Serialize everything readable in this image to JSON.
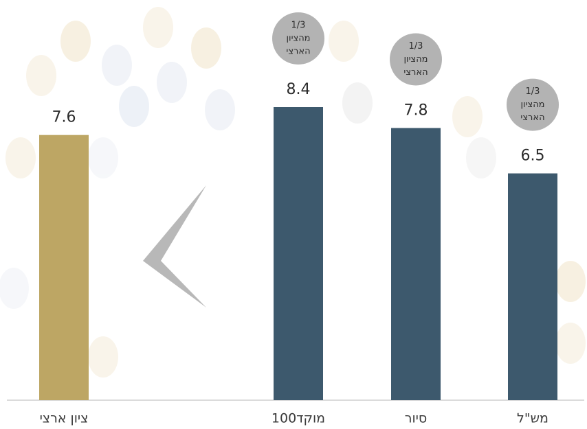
{
  "chart_data": {
    "type": "bar",
    "categories": [
      "ציון ארצי",
      "מוקד100",
      "סיור",
      "מש\"ל"
    ],
    "values": [
      7.6,
      8.4,
      7.8,
      6.5
    ],
    "colors": [
      "#bda664",
      "#3d596d",
      "#3d596d",
      "#3d596d"
    ],
    "annotations": [
      null,
      [
        "1/3",
        "מהציון",
        "הארצי"
      ],
      [
        "1/3",
        "מהציון",
        "הארצי"
      ],
      [
        "1/3",
        "מהציון",
        "הארצי"
      ]
    ]
  }
}
